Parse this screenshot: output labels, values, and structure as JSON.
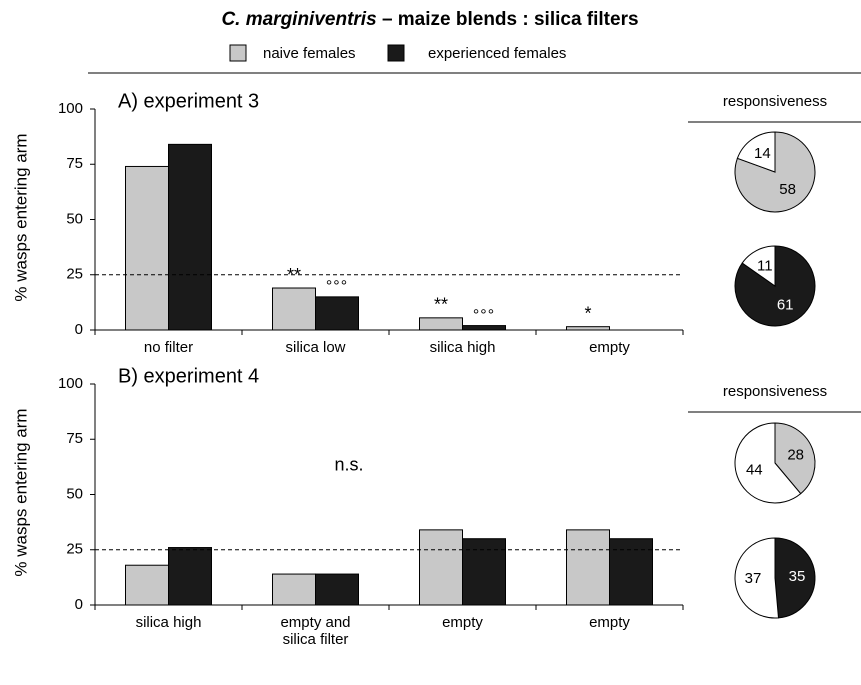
{
  "title": {
    "species": "C. marginiventris",
    "rest": "– maize blends : silica filters"
  },
  "chart_data": [
    {
      "type": "bar",
      "subtitle": "A) experiment 3",
      "ylabel": "% wasps entering arm",
      "categories": [
        "no filter",
        "silica low",
        "silica high",
        "empty"
      ],
      "series": [
        {
          "name": "naive females",
          "color": "#c8c8c8",
          "values": [
            74,
            19,
            5.5,
            1.5
          ]
        },
        {
          "name": "experienced females",
          "color": "#1a1a1a",
          "values": [
            84,
            15,
            2,
            0
          ]
        }
      ],
      "ylim": [
        0,
        100
      ],
      "yticks": [
        0,
        25,
        50,
        75,
        100
      ],
      "ref_line": 25,
      "annotations": [
        {
          "text": "**",
          "category": 1,
          "series": 0
        },
        {
          "text": "°°°",
          "category": 1,
          "series": 1
        },
        {
          "text": "**",
          "category": 2,
          "series": 0
        },
        {
          "text": "°°°",
          "category": 2,
          "series": 1
        },
        {
          "text": "*",
          "category": 3,
          "series": 0
        }
      ]
    },
    {
      "type": "pie",
      "title": "responsiveness",
      "values": [
        58,
        14
      ],
      "colors": [
        "#c8c8c8",
        "#ffffff"
      ]
    },
    {
      "type": "pie",
      "values": [
        61,
        11
      ],
      "colors": [
        "#1a1a1a",
        "#ffffff"
      ]
    },
    {
      "type": "bar",
      "subtitle": "B) experiment 4",
      "ylabel": "% wasps entering arm",
      "categories": [
        "silica high",
        "empty and\nsilica filter",
        "empty",
        "empty"
      ],
      "series": [
        {
          "color": "#c8c8c8",
          "values": [
            18,
            14,
            34,
            34
          ]
        },
        {
          "color": "#1a1a1a",
          "values": [
            26,
            14,
            30,
            30
          ]
        }
      ],
      "ylim": [
        0,
        100
      ],
      "yticks": [
        0,
        25,
        50,
        75,
        100
      ],
      "ref_line": 25,
      "annotations": [
        {
          "text": "n.s."
        }
      ]
    },
    {
      "type": "pie",
      "title": "responsiveness",
      "values": [
        28,
        44
      ],
      "colors": [
        "#c8c8c8",
        "#ffffff"
      ]
    },
    {
      "type": "pie",
      "values": [
        35,
        37
      ],
      "colors": [
        "#1a1a1a",
        "#ffffff"
      ]
    }
  ]
}
